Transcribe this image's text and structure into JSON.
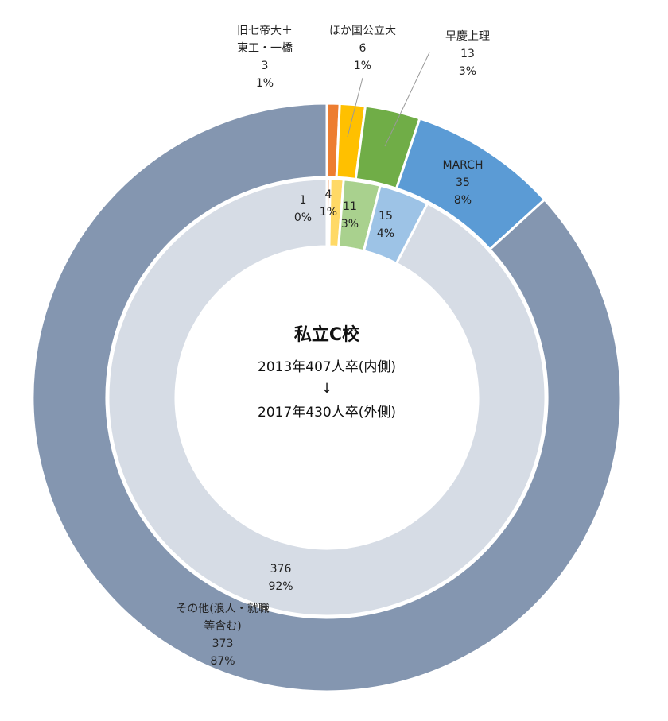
{
  "chart_data": {
    "type": "pie",
    "style": "nested-donut",
    "center": {
      "title": "私立C校",
      "line1": "2013年407人卒(内側)",
      "arrow": "↓",
      "line2": "2017年430人卒(外側)"
    },
    "outer": {
      "year": 2017,
      "total": 430,
      "slices": [
        {
          "name_lines": [
            "旧七帝大＋",
            "東工・一橋"
          ],
          "value": 3,
          "pct": "1%",
          "color": "#ED7D31"
        },
        {
          "name_lines": [
            "ほか国公立大"
          ],
          "value": 6,
          "pct": "1%",
          "color": "#FFC000"
        },
        {
          "name_lines": [
            "早慶上理"
          ],
          "value": 13,
          "pct": "3%",
          "color": "#70AD47"
        },
        {
          "name_lines": [
            "MARCH"
          ],
          "value": 35,
          "pct": "8%",
          "color": "#5B9BD5"
        },
        {
          "name_lines": [
            "その他(浪人・就職",
            "等含む)"
          ],
          "value": 373,
          "pct": "87%",
          "color": "#8496B0"
        }
      ]
    },
    "inner": {
      "year": 2013,
      "total": 407,
      "slices": [
        {
          "value": 1,
          "pct": "0%",
          "color": "#F4B183"
        },
        {
          "value": 4,
          "pct": "1%",
          "color": "#FFD966"
        },
        {
          "value": 11,
          "pct": "3%",
          "color": "#A9D18E"
        },
        {
          "value": 15,
          "pct": "4%",
          "color": "#9DC3E6"
        },
        {
          "value": 376,
          "pct": "92%",
          "color": "#D6DCE5"
        }
      ]
    }
  }
}
